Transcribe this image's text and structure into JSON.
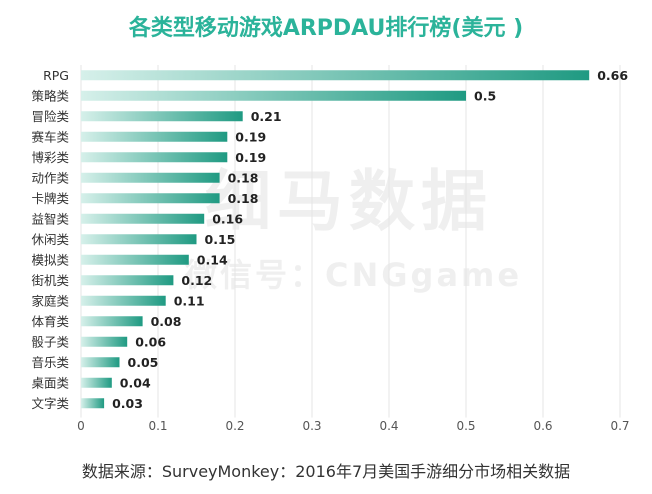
{
  "title": "各类型移动游戏ARPDAU排行榜(美元 )",
  "watermark": {
    "main": "细马数据",
    "sub": "微信号：CNGgame"
  },
  "source": "数据来源：SurveyMonkey：2016年7月美国手游细分市场相关数据",
  "colors": {
    "title": "#2bb39a",
    "bar_dark": "#1f9a82",
    "bar_light": "#d6f0ea",
    "grid": "#e5e5e5",
    "axis_text": "#555555",
    "value_text": "#222222"
  },
  "chart_data": {
    "type": "bar",
    "orientation": "horizontal",
    "categories": [
      "RPG",
      "策略类",
      "冒险类",
      "赛车类",
      "博彩类",
      "动作类",
      "卡牌类",
      "益智类",
      "休闲类",
      "模拟类",
      "街机类",
      "家庭类",
      "体育类",
      "骰子类",
      "音乐类",
      "桌面类",
      "文字类"
    ],
    "values": [
      0.66,
      0.5,
      0.21,
      0.19,
      0.19,
      0.18,
      0.18,
      0.16,
      0.15,
      0.14,
      0.12,
      0.11,
      0.08,
      0.06,
      0.05,
      0.04,
      0.03
    ],
    "value_labels": [
      "0.66",
      "0.5",
      "0.21",
      "0.19",
      "0.19",
      "0.18",
      "0.18",
      "0.16",
      "0.15",
      "0.14",
      "0.12",
      "0.11",
      "0.08",
      "0.06",
      "0.05",
      "0.04",
      "0.03"
    ],
    "xlim": [
      0,
      0.7
    ],
    "xticks": [
      0,
      0.1,
      0.2,
      0.3,
      0.4,
      0.5,
      0.6,
      0.7
    ],
    "xtick_labels": [
      "0",
      "0.1",
      "0.2",
      "0.3",
      "0.4",
      "0.5",
      "0.6",
      "0.7"
    ],
    "grid": true,
    "legend": "none"
  }
}
